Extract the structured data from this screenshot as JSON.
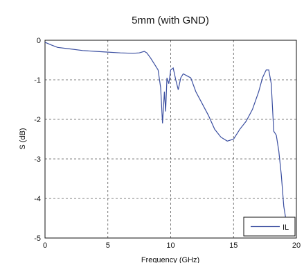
{
  "chart_data": {
    "type": "line",
    "title": "5mm (with GND)",
    "xlabel": "Frequency (GHz)",
    "ylabel": "S (dB)",
    "xlim": [
      0,
      20
    ],
    "ylim": [
      -5,
      0
    ],
    "xticks": [
      "0",
      "5",
      "10",
      "15",
      "20"
    ],
    "yticks": [
      "0",
      "-1",
      "-2",
      "-3",
      "-4",
      "-5"
    ],
    "grid": true,
    "legend_position": "bottom-right",
    "line_color": "#3a4ea0",
    "series": [
      {
        "name": "IL",
        "x": [
          0,
          0.5,
          1,
          2,
          3,
          4,
          5,
          6,
          7,
          7.5,
          7.9,
          8.1,
          8.4,
          8.7,
          9.0,
          9.2,
          9.35,
          9.5,
          9.6,
          9.7,
          9.85,
          10.0,
          10.2,
          10.4,
          10.6,
          10.8,
          11.0,
          11.3,
          11.6,
          12.0,
          12.5,
          13.0,
          13.5,
          14.0,
          14.5,
          15.0,
          15.5,
          16.0,
          16.5,
          17.0,
          17.3,
          17.6,
          17.8,
          18.0,
          18.2,
          18.4,
          18.6,
          18.8,
          19.0,
          19.2
        ],
        "y": [
          -0.05,
          -0.12,
          -0.18,
          -0.22,
          -0.26,
          -0.28,
          -0.3,
          -0.32,
          -0.33,
          -0.32,
          -0.28,
          -0.32,
          -0.45,
          -0.6,
          -0.75,
          -1.2,
          -2.1,
          -1.3,
          -1.8,
          -0.95,
          -1.1,
          -0.75,
          -0.7,
          -1.0,
          -1.25,
          -0.95,
          -0.85,
          -0.9,
          -0.95,
          -1.3,
          -1.6,
          -1.9,
          -2.25,
          -2.45,
          -2.55,
          -2.5,
          -2.25,
          -2.05,
          -1.75,
          -1.3,
          -0.95,
          -0.75,
          -0.75,
          -1.1,
          -2.3,
          -2.4,
          -2.8,
          -3.4,
          -4.2,
          -4.6
        ]
      }
    ]
  }
}
